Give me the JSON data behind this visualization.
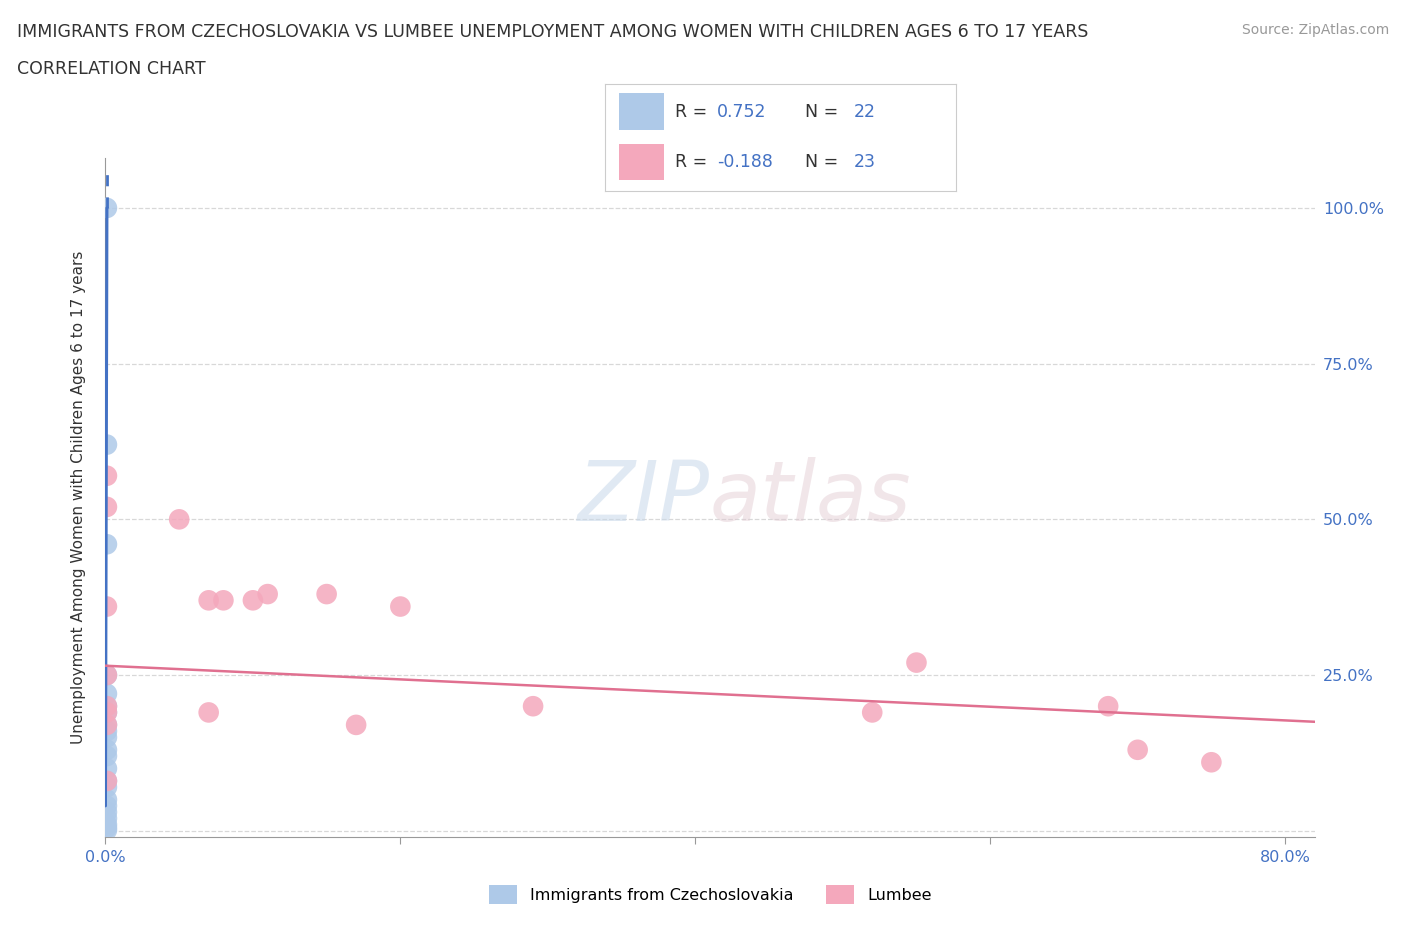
{
  "title_line1": "IMMIGRANTS FROM CZECHOSLOVAKIA VS LUMBEE UNEMPLOYMENT AMONG WOMEN WITH CHILDREN AGES 6 TO 17 YEARS",
  "title_line2": "CORRELATION CHART",
  "source": "Source: ZipAtlas.com",
  "ylabel": "Unemployment Among Women with Children Ages 6 to 17 years",
  "xlim": [
    0.0,
    0.82
  ],
  "ylim": [
    -0.01,
    1.08
  ],
  "xtick_vals": [
    0.0,
    0.2,
    0.4,
    0.6,
    0.8
  ],
  "xtick_labels": [
    "0.0%",
    "",
    "",
    "",
    "80.0%"
  ],
  "ytick_vals": [
    0.0,
    0.25,
    0.5,
    0.75,
    1.0
  ],
  "ytick_labels_left": [
    "",
    "",
    "",
    "",
    ""
  ],
  "ytick_labels_right": [
    "25.0%",
    "50.0%",
    "75.0%",
    "100.0%"
  ],
  "ytick_vals_right": [
    0.25,
    0.5,
    0.75,
    1.0
  ],
  "color_blue": "#aec9e8",
  "color_pink": "#f4a8bc",
  "color_blue_line": "#4472c4",
  "color_pink_line": "#e07090",
  "grid_color": "#d8d8d8",
  "legend_label_blue": "Immigrants from Czechoslovakia",
  "legend_label_pink": "Lumbee",
  "blue_scatter_x": [
    0.001,
    0.001,
    0.001,
    0.001,
    0.001,
    0.001,
    0.001,
    0.001,
    0.001,
    0.001,
    0.001,
    0.001,
    0.001,
    0.001,
    0.001,
    0.001,
    0.001,
    0.001,
    0.001,
    0.001,
    0.001,
    0.001
  ],
  "blue_scatter_y": [
    1.0,
    0.62,
    0.46,
    0.25,
    0.22,
    0.2,
    0.19,
    0.17,
    0.16,
    0.15,
    0.13,
    0.12,
    0.1,
    0.08,
    0.07,
    0.05,
    0.04,
    0.03,
    0.02,
    0.01,
    0.005,
    0.001
  ],
  "pink_scatter_x": [
    0.001,
    0.05,
    0.001,
    0.08,
    0.11,
    0.1,
    0.001,
    0.07,
    0.15,
    0.001,
    0.001,
    0.2,
    0.07,
    0.001,
    0.55,
    0.7,
    0.68,
    0.75,
    0.52,
    0.29,
    0.001,
    0.17,
    0.001
  ],
  "pink_scatter_y": [
    0.52,
    0.5,
    0.57,
    0.37,
    0.38,
    0.37,
    0.36,
    0.19,
    0.38,
    0.17,
    0.2,
    0.36,
    0.37,
    0.25,
    0.27,
    0.13,
    0.2,
    0.11,
    0.19,
    0.2,
    0.19,
    0.17,
    0.08
  ],
  "blue_trendline_y0": 0.04,
  "blue_trendline_y1": 1.0,
  "pink_trendline_x0": 0.0,
  "pink_trendline_x1": 0.82,
  "pink_trendline_y0": 0.265,
  "pink_trendline_y1": 0.175
}
